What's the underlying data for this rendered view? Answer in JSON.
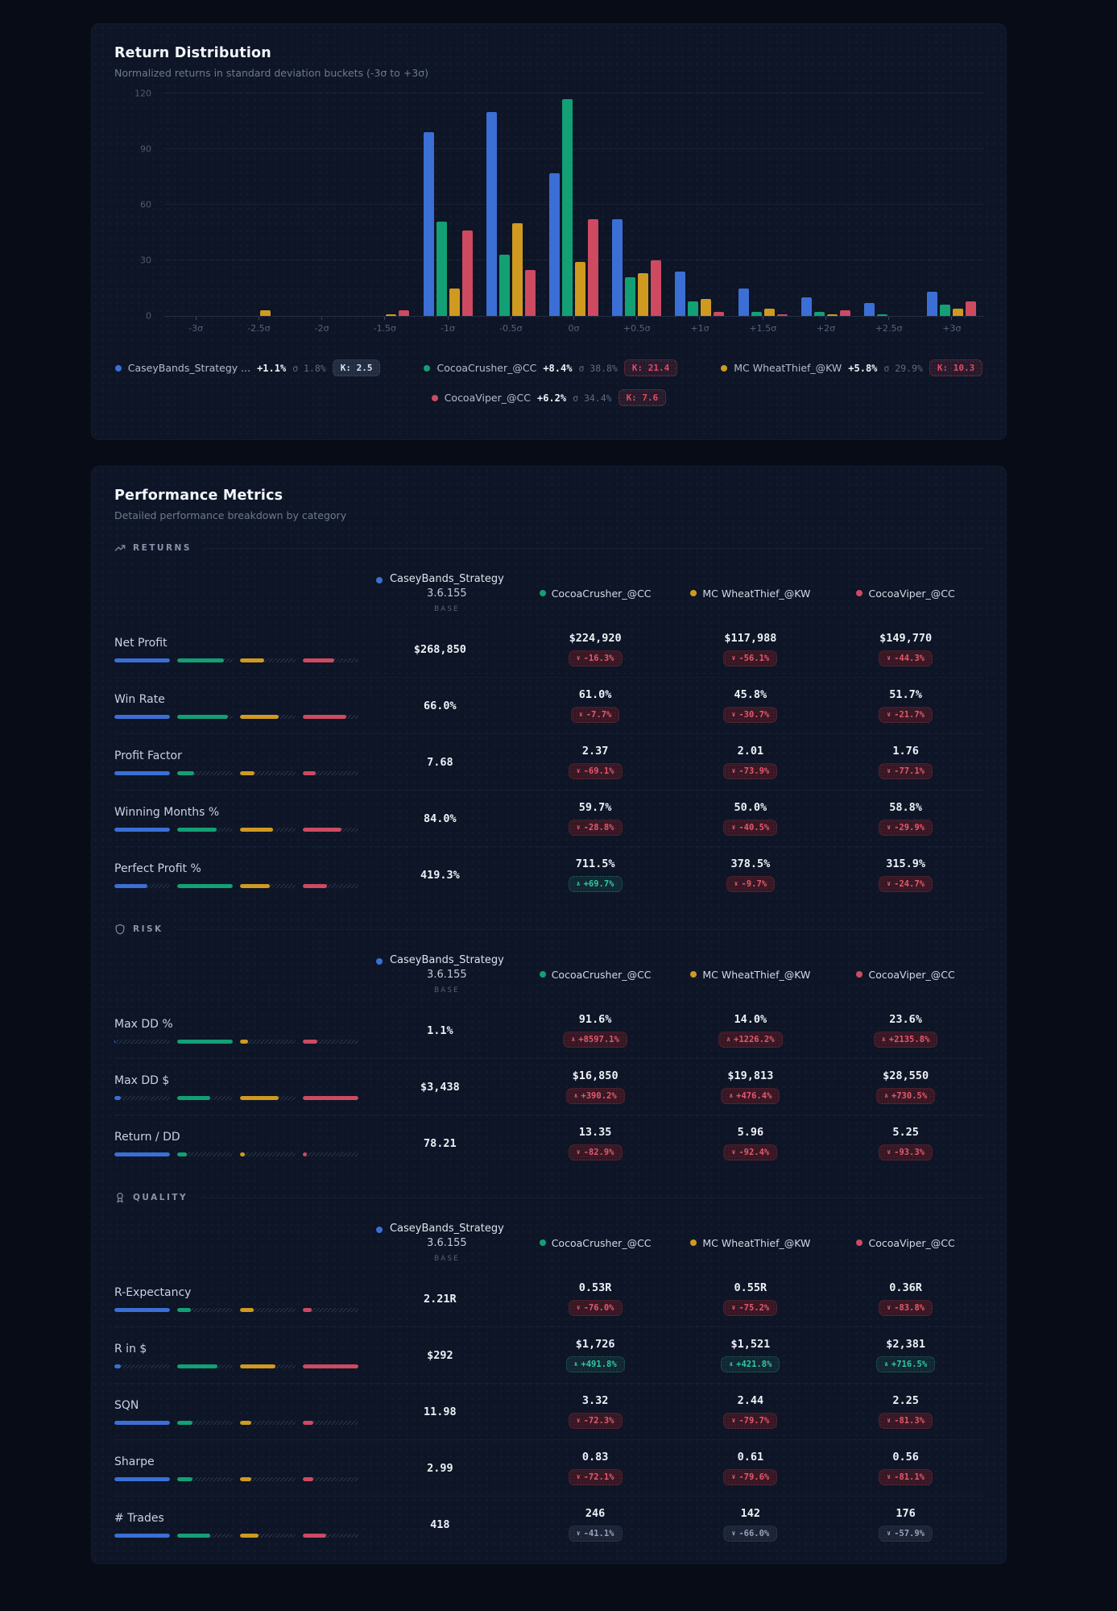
{
  "page": {
    "background": "#080c17"
  },
  "distribution": {
    "title": "Return Distribution",
    "subtitle": "Normalized returns in standard deviation buckets (-3σ to +3σ)",
    "legend": [
      {
        "name": "CaseyBands_Strategy ...",
        "return_pct": "+1.1%",
        "sigma": "σ 1.8%",
        "k": "K: 2.5",
        "k_style": "base",
        "color": "#3b6fd6"
      },
      {
        "name": "CocoaCrusher_@CC",
        "return_pct": "+8.4%",
        "sigma": "σ 38.8%",
        "k": "K: 21.4",
        "k_style": "alert",
        "color": "#13a074"
      },
      {
        "name": "MC WheatThief_@KW",
        "return_pct": "+5.8%",
        "sigma": "σ 29.9%",
        "k": "K: 10.3",
        "k_style": "alert",
        "color": "#cf9a1f"
      },
      {
        "name": "CocoaViper_@CC",
        "return_pct": "+6.2%",
        "sigma": "σ 34.4%",
        "k": "K: 7.6",
        "k_style": "alert",
        "color": "#cd4a61"
      }
    ]
  },
  "chart_data": {
    "type": "bar",
    "title": "Return Distribution",
    "ylim": [
      0,
      120
    ],
    "yticks": [
      0,
      30,
      60,
      90,
      120
    ],
    "grid": true,
    "legend_position": "bottom",
    "categories": [
      "-3σ",
      "-2.5σ",
      "-2σ",
      "-1.5σ",
      "-1σ",
      "-0.5σ",
      "0σ",
      "+0.5σ",
      "+1σ",
      "+1.5σ",
      "+2σ",
      "+2.5σ",
      "+3σ"
    ],
    "series": [
      {
        "name": "CaseyBands_Strategy ...",
        "color": "#3b6fd6",
        "values": [
          0,
          0,
          0,
          0,
          99,
          110,
          77,
          52,
          24,
          15,
          10,
          7,
          13
        ]
      },
      {
        "name": "CocoaCrusher_@CC",
        "color": "#13a074",
        "values": [
          0,
          0,
          0,
          0,
          51,
          33,
          117,
          21,
          8,
          2,
          2,
          1,
          6
        ]
      },
      {
        "name": "MC WheatThief_@KW",
        "color": "#cf9a1f",
        "values": [
          0,
          3,
          0,
          1,
          15,
          50,
          29,
          23,
          9,
          4,
          1,
          0,
          4
        ]
      },
      {
        "name": "CocoaViper_@CC",
        "color": "#cd4a61",
        "values": [
          0,
          0,
          0,
          3,
          46,
          25,
          52,
          30,
          2,
          1,
          3,
          0,
          8
        ]
      }
    ]
  },
  "metrics": {
    "title": "Performance Metrics",
    "subtitle": "Detailed performance breakdown by category",
    "base_header": {
      "name": "CaseyBands_Strategy",
      "version": "3.6.155",
      "tag": "BASE",
      "color": "#3b6fd6"
    },
    "strategies": [
      {
        "name": "CocoaCrusher_@CC",
        "color": "#13a074"
      },
      {
        "name": "MC WheatThief_@KW",
        "color": "#cf9a1f"
      },
      {
        "name": "CocoaViper_@CC",
        "color": "#cd4a61"
      }
    ],
    "sections": [
      {
        "label": "RETURNS",
        "icon": "trending-up",
        "rows": [
          {
            "label": "Net Profit",
            "base": "$268,850",
            "bars": [
              1,
              0.84,
              0.44,
              0.56
            ],
            "cells": [
              {
                "value": "$224,920",
                "delta": "-16.3%",
                "dir": "down",
                "tone": "bad"
              },
              {
                "value": "$117,988",
                "delta": "-56.1%",
                "dir": "down",
                "tone": "bad"
              },
              {
                "value": "$149,770",
                "delta": "-44.3%",
                "dir": "down",
                "tone": "bad"
              }
            ]
          },
          {
            "label": "Win Rate",
            "base": "66.0%",
            "bars": [
              1,
              0.92,
              0.69,
              0.78
            ],
            "cells": [
              {
                "value": "61.0%",
                "delta": "-7.7%",
                "dir": "down",
                "tone": "bad"
              },
              {
                "value": "45.8%",
                "delta": "-30.7%",
                "dir": "down",
                "tone": "bad"
              },
              {
                "value": "51.7%",
                "delta": "-21.7%",
                "dir": "down",
                "tone": "bad"
              }
            ]
          },
          {
            "label": "Profit Factor",
            "base": "7.68",
            "bars": [
              1,
              0.31,
              0.26,
              0.23
            ],
            "cells": [
              {
                "value": "2.37",
                "delta": "-69.1%",
                "dir": "down",
                "tone": "bad"
              },
              {
                "value": "2.01",
                "delta": "-73.9%",
                "dir": "down",
                "tone": "bad"
              },
              {
                "value": "1.76",
                "delta": "-77.1%",
                "dir": "down",
                "tone": "bad"
              }
            ]
          },
          {
            "label": "Winning Months %",
            "base": "84.0%",
            "bars": [
              1,
              0.71,
              0.6,
              0.7
            ],
            "cells": [
              {
                "value": "59.7%",
                "delta": "-28.8%",
                "dir": "down",
                "tone": "bad"
              },
              {
                "value": "50.0%",
                "delta": "-40.5%",
                "dir": "down",
                "tone": "bad"
              },
              {
                "value": "58.8%",
                "delta": "-29.9%",
                "dir": "down",
                "tone": "bad"
              }
            ]
          },
          {
            "label": "Perfect Profit %",
            "base": "419.3%",
            "bars": [
              0.59,
              1,
              0.53,
              0.44
            ],
            "cells": [
              {
                "value": "711.5%",
                "delta": "+69.7%",
                "dir": "up",
                "tone": "good"
              },
              {
                "value": "378.5%",
                "delta": "-9.7%",
                "dir": "down",
                "tone": "bad"
              },
              {
                "value": "315.9%",
                "delta": "-24.7%",
                "dir": "down",
                "tone": "bad"
              }
            ]
          }
        ]
      },
      {
        "label": "RISK",
        "icon": "shield",
        "rows": [
          {
            "label": "Max DD %",
            "base": "1.1%",
            "bars": [
              0.02,
              1,
              0.15,
              0.26
            ],
            "cells": [
              {
                "value": "91.6%",
                "delta": "+8597.1%",
                "dir": "up",
                "tone": "bad"
              },
              {
                "value": "14.0%",
                "delta": "+1226.2%",
                "dir": "up",
                "tone": "bad"
              },
              {
                "value": "23.6%",
                "delta": "+2135.8%",
                "dir": "up",
                "tone": "bad"
              }
            ]
          },
          {
            "label": "Max DD $",
            "base": "$3,438",
            "bars": [
              0.12,
              0.59,
              0.69,
              1
            ],
            "cells": [
              {
                "value": "$16,850",
                "delta": "+390.2%",
                "dir": "up",
                "tone": "bad"
              },
              {
                "value": "$19,813",
                "delta": "+476.4%",
                "dir": "up",
                "tone": "bad"
              },
              {
                "value": "$28,550",
                "delta": "+730.5%",
                "dir": "up",
                "tone": "bad"
              }
            ]
          },
          {
            "label": "Return / DD",
            "base": "78.21",
            "bars": [
              1,
              0.17,
              0.08,
              0.07
            ],
            "cells": [
              {
                "value": "13.35",
                "delta": "-82.9%",
                "dir": "down",
                "tone": "bad"
              },
              {
                "value": "5.96",
                "delta": "-92.4%",
                "dir": "down",
                "tone": "bad"
              },
              {
                "value": "5.25",
                "delta": "-93.3%",
                "dir": "down",
                "tone": "bad"
              }
            ]
          }
        ]
      },
      {
        "label": "QUALITY",
        "icon": "award",
        "rows": [
          {
            "label": "R-Expectancy",
            "base": "2.21R",
            "bars": [
              1,
              0.24,
              0.25,
              0.16
            ],
            "cells": [
              {
                "value": "0.53R",
                "delta": "-76.0%",
                "dir": "down",
                "tone": "bad"
              },
              {
                "value": "0.55R",
                "delta": "-75.2%",
                "dir": "down",
                "tone": "bad"
              },
              {
                "value": "0.36R",
                "delta": "-83.8%",
                "dir": "down",
                "tone": "bad"
              }
            ]
          },
          {
            "label": "R in $",
            "base": "$292",
            "bars": [
              0.12,
              0.72,
              0.64,
              1
            ],
            "cells": [
              {
                "value": "$1,726",
                "delta": "+491.8%",
                "dir": "up",
                "tone": "good"
              },
              {
                "value": "$1,521",
                "delta": "+421.8%",
                "dir": "up",
                "tone": "good"
              },
              {
                "value": "$2,381",
                "delta": "+716.5%",
                "dir": "up",
                "tone": "good"
              }
            ]
          },
          {
            "label": "SQN",
            "base": "11.98",
            "bars": [
              1,
              0.28,
              0.2,
              0.19
            ],
            "cells": [
              {
                "value": "3.32",
                "delta": "-72.3%",
                "dir": "down",
                "tone": "bad"
              },
              {
                "value": "2.44",
                "delta": "-79.7%",
                "dir": "down",
                "tone": "bad"
              },
              {
                "value": "2.25",
                "delta": "-81.3%",
                "dir": "down",
                "tone": "bad"
              }
            ]
          },
          {
            "label": "Sharpe",
            "base": "2.99",
            "bars": [
              1,
              0.28,
              0.2,
              0.19
            ],
            "cells": [
              {
                "value": "0.83",
                "delta": "-72.1%",
                "dir": "down",
                "tone": "bad"
              },
              {
                "value": "0.61",
                "delta": "-79.6%",
                "dir": "down",
                "tone": "bad"
              },
              {
                "value": "0.56",
                "delta": "-81.1%",
                "dir": "down",
                "tone": "bad"
              }
            ]
          },
          {
            "label": "# Trades",
            "base": "418",
            "bars": [
              1,
              0.59,
              0.34,
              0.42
            ],
            "cells": [
              {
                "value": "246",
                "delta": "-41.1%",
                "dir": "down",
                "tone": "neutral"
              },
              {
                "value": "142",
                "delta": "-66.0%",
                "dir": "down",
                "tone": "neutral"
              },
              {
                "value": "176",
                "delta": "-57.9%",
                "dir": "down",
                "tone": "neutral"
              }
            ]
          }
        ]
      }
    ]
  }
}
